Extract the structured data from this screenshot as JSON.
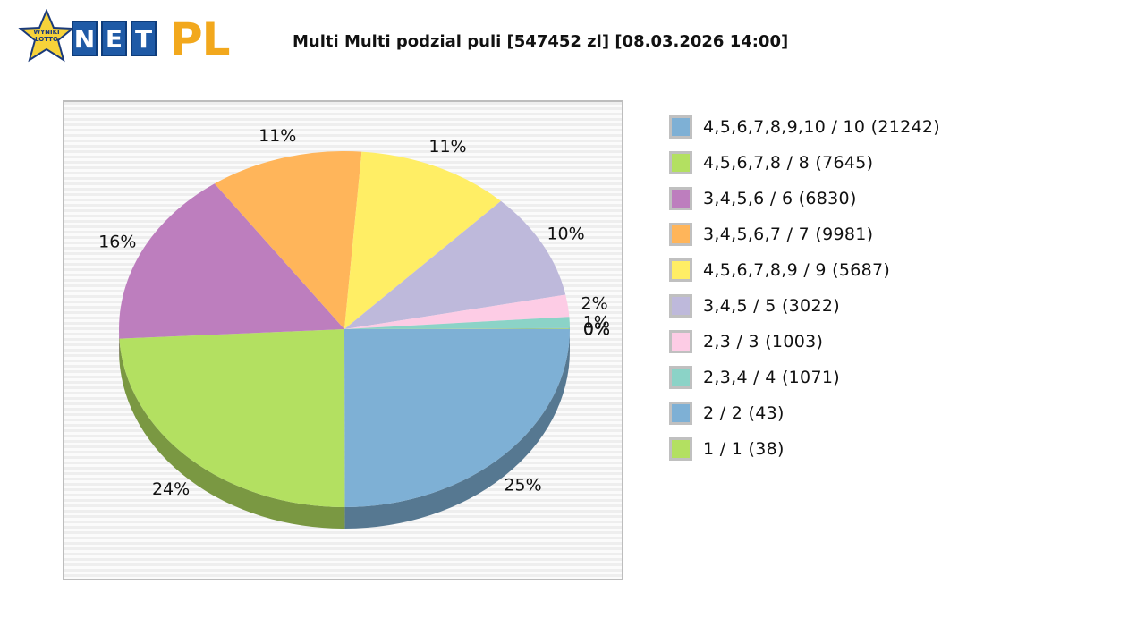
{
  "header": {
    "logo_star_text": "WYNIKI LOTTO",
    "logo_tiles": [
      "N",
      "E",
      "T"
    ],
    "logo_suffix": "PL",
    "title": "Multi Multi podzial puli [547452 zl] [08.03.2026 14:00]"
  },
  "chart_data": {
    "type": "pie",
    "title": "Multi Multi podzial puli [547452 zl] [08.03.2026 14:00]",
    "legend_position": "right",
    "slices": [
      {
        "label": "4,5,6,7,8,9,10 / 10 (21242)",
        "pct_label": "25%",
        "value": 25.0,
        "color": "#7eb0d5"
      },
      {
        "label": "4,5,6,7,8 / 8 (7645)",
        "pct_label": "24%",
        "value": 24.2,
        "color": "#b3e061"
      },
      {
        "label": "3,4,5,6 / 6 (6830)",
        "pct_label": "16%",
        "value": 16.1,
        "color": "#bd7ebe"
      },
      {
        "label": "3,4,5,6,7 / 7 (9981)",
        "pct_label": "11%",
        "value": 11.0,
        "color": "#ffb55a"
      },
      {
        "label": "4,5,6,7,8,9 / 9 (5687)",
        "pct_label": "11%",
        "value": 11.0,
        "color": "#ffee65"
      },
      {
        "label": "3,4,5 / 5 (3022)",
        "pct_label": "10%",
        "value": 9.7,
        "color": "#beb9db"
      },
      {
        "label": "2,3 / 3 (1003)",
        "pct_label": "2%",
        "value": 2.0,
        "color": "#fdcce5"
      },
      {
        "label": "2,3,4 / 4 (1071)",
        "pct_label": "1%",
        "value": 1.0,
        "color": "#8bd3c7"
      },
      {
        "label": "2 / 2 (43)",
        "pct_label": "0%",
        "value": 0.05,
        "color": "#7eb0d5"
      },
      {
        "label": "1 / 1 (38)",
        "pct_label": "0%",
        "value": 0.05,
        "color": "#b3e061"
      }
    ]
  }
}
